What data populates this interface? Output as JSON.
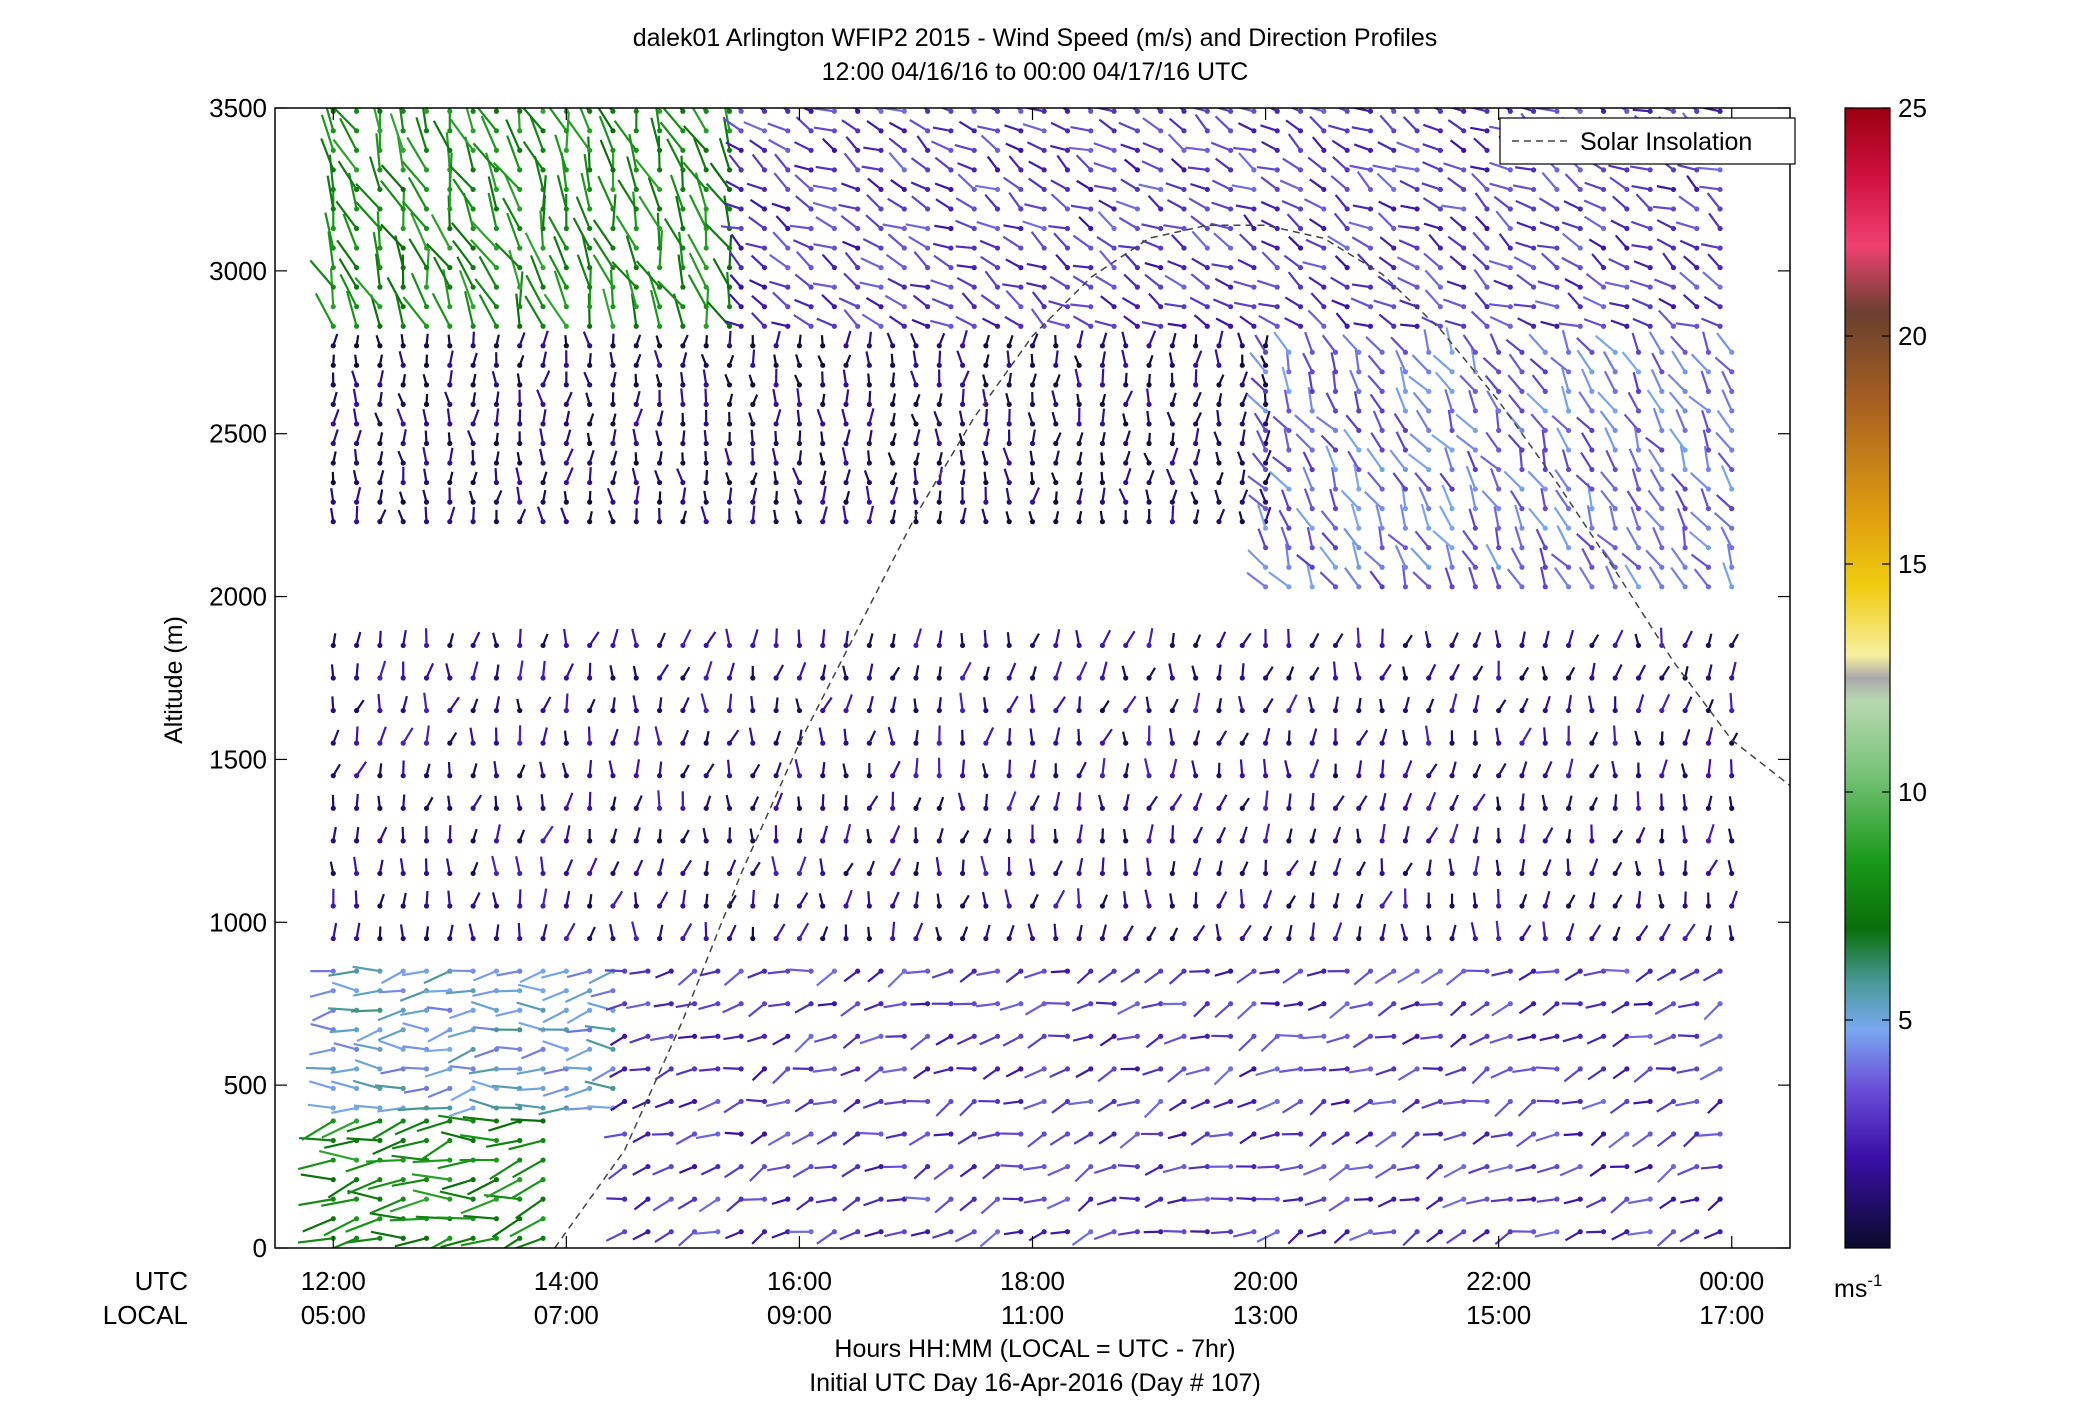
{
  "chart_data": {
    "type": "wind-barb-profile",
    "title": "dalek01 Arlington WFIP2 2015 - Wind Speed (m/s) and Direction Profiles",
    "subtitle": "12:00 04/16/16 to 00:00 04/17/16  UTC",
    "ylabel": "Altitude (m)",
    "xlabel": "Hours HH:MM  (LOCAL = UTC - 7hr)",
    "xlabel2": "Initial UTC Day 16-Apr-2016 (Day # 107)",
    "ylim": [
      0,
      3500
    ],
    "xlim_hours_utc": [
      11.5,
      24.5
    ],
    "yticks": [
      0,
      500,
      1000,
      1500,
      2000,
      2500,
      3000,
      3500
    ],
    "xtick_row_labels": {
      "utc": "UTC",
      "local": "LOCAL"
    },
    "xticks": [
      {
        "hour": 12,
        "utc": "12:00",
        "local": "05:00"
      },
      {
        "hour": 14,
        "utc": "14:00",
        "local": "07:00"
      },
      {
        "hour": 16,
        "utc": "16:00",
        "local": "09:00"
      },
      {
        "hour": 18,
        "utc": "18:00",
        "local": "11:00"
      },
      {
        "hour": 20,
        "utc": "20:00",
        "local": "13:00"
      },
      {
        "hour": 22,
        "utc": "22:00",
        "local": "15:00"
      },
      {
        "hour": 24,
        "utc": "00:00",
        "local": "17:00"
      }
    ],
    "legend": {
      "entry": "Solar Insolation",
      "style": "dashed",
      "position": "top-right"
    },
    "colorbar": {
      "min": 0,
      "max": 25,
      "ticks": [
        5,
        10,
        15,
        20,
        25
      ],
      "units_base": "ms",
      "units_exp": "-1",
      "colormap": [
        [
          0,
          "#0b0b2a"
        ],
        [
          2,
          "#3a0fa8"
        ],
        [
          3.5,
          "#6a4fd8"
        ],
        [
          4.8,
          "#7aa8f0"
        ],
        [
          5.8,
          "#4a9a9a"
        ],
        [
          7,
          "#0a6e0a"
        ],
        [
          8.5,
          "#1a9a1a"
        ],
        [
          10.5,
          "#7cc47c"
        ],
        [
          12,
          "#b8d8b0"
        ],
        [
          12.5,
          "#a8a8a8"
        ],
        [
          13,
          "#f8f0a0"
        ],
        [
          14.5,
          "#f0cc10"
        ],
        [
          16,
          "#e0a010"
        ],
        [
          18.5,
          "#a86020"
        ],
        [
          20.5,
          "#6a4030"
        ],
        [
          22,
          "#f04070"
        ],
        [
          23.5,
          "#d01040"
        ],
        [
          25,
          "#9a0010"
        ]
      ]
    },
    "solar_insolation_curve": {
      "hours": [
        13.9,
        14.5,
        15.0,
        15.5,
        16.0,
        16.5,
        17.0,
        17.5,
        18.0,
        18.5,
        19.0,
        19.5,
        20.0,
        20.5,
        21.0,
        21.5,
        22.0,
        22.5,
        23.0,
        23.5,
        24.0,
        24.5
      ],
      "altitude_m": [
        0,
        300,
        700,
        1150,
        1550,
        1900,
        2250,
        2550,
        2800,
        2980,
        3100,
        3140,
        3140,
        3100,
        2990,
        2820,
        2600,
        2350,
        2080,
        1800,
        1560,
        1420
      ]
    },
    "wind_profile_samples": [
      {
        "height_band_m": [
          0,
          400
        ],
        "time_range_hours": [
          12,
          13.8
        ],
        "speed_ms": 8,
        "dir_deg": 260
      },
      {
        "height_band_m": [
          400,
          900
        ],
        "time_range_hours": [
          12,
          14.5
        ],
        "speed_ms": 5,
        "dir_deg": 265
      },
      {
        "height_band_m": [
          0,
          900
        ],
        "time_range_hours": [
          14.5,
          24
        ],
        "speed_ms": 3,
        "dir_deg": 250
      },
      {
        "height_band_m": [
          900,
          1900
        ],
        "time_range_hours": [
          12,
          24
        ],
        "speed_ms": 1.5,
        "dir_deg": 10
      },
      {
        "height_band_m": [
          2200,
          2800
        ],
        "time_range_hours": [
          12,
          20
        ],
        "speed_ms": 1,
        "dir_deg": 0
      },
      {
        "height_band_m": [
          2800,
          3500
        ],
        "time_range_hours": [
          12,
          15.5
        ],
        "speed_ms": 8,
        "dir_deg": 340
      },
      {
        "height_band_m": [
          2800,
          3500
        ],
        "time_range_hours": [
          15.5,
          24
        ],
        "speed_ms": 3,
        "dir_deg": 300
      },
      {
        "height_band_m": [
          2000,
          2800
        ],
        "time_range_hours": [
          20,
          24
        ],
        "speed_ms": 4,
        "dir_deg": 330
      }
    ]
  }
}
